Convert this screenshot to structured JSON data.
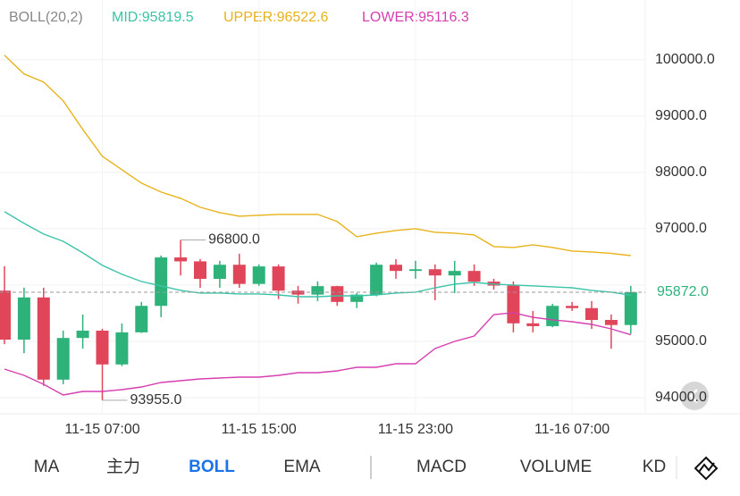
{
  "chart_data": {
    "type": "candlestick",
    "indicator": "BOLL(20,2)",
    "categories": [
      null,
      null,
      null,
      null,
      null,
      "11-15 07:00",
      null,
      null,
      null,
      null,
      null,
      null,
      null,
      "11-15 15:00",
      null,
      null,
      null,
      null,
      null,
      null,
      null,
      "11-15 23:00",
      null,
      null,
      null,
      null,
      null,
      null,
      null,
      "11-16 07:00",
      null,
      null,
      null
    ],
    "open": [
      95900,
      95030,
      95780,
      94320,
      95060,
      95190,
      94590,
      95160,
      95630,
      96490,
      96420,
      96110,
      96360,
      96020,
      96330,
      95900,
      95830,
      95980,
      95700,
      95830,
      96360,
      96250,
      96280,
      96170,
      96250,
      96060,
      95990,
      95320,
      95270,
      95630,
      95590,
      95380,
      95290
    ],
    "high": [
      96334,
      95953,
      95953,
      95190,
      95477,
      95223,
      95318,
      95700,
      96524,
      96800,
      96460,
      96430,
      96556,
      96366,
      96366,
      95985,
      96064,
      95985,
      95858,
      96398,
      96460,
      96430,
      96366,
      96430,
      96366,
      96112,
      96064,
      95540,
      95667,
      95700,
      95715,
      95477,
      95985
    ],
    "low": [
      94950,
      94790,
      94210,
      94240,
      94870,
      93955,
      94560,
      95150,
      95430,
      96170,
      95950,
      95950,
      95950,
      95985,
      95750,
      95670,
      95715,
      95630,
      95590,
      95800,
      96112,
      96112,
      95730,
      95858,
      95985,
      95920,
      95160,
      95160,
      95250,
      95540,
      95220,
      94870,
      95130
    ],
    "close": [
      95030,
      95780,
      94320,
      95060,
      95190,
      94590,
      95160,
      95630,
      96490,
      96420,
      96110,
      96360,
      96020,
      96330,
      95900,
      95830,
      95980,
      95700,
      95830,
      96360,
      96250,
      96280,
      96170,
      96250,
      96060,
      95990,
      95320,
      95270,
      95630,
      95590,
      95380,
      95290,
      95872
    ],
    "up_color": "#2db37a",
    "down_color": "#e0455a",
    "lines": [
      {
        "name": "MID:",
        "color": "#3cc4a8",
        "last_value": 95819.5,
        "values": [
          97301,
          97095,
          96904,
          96777,
          96571,
          96349,
          96190,
          96063,
          95984,
          95905,
          95857,
          95857,
          95841,
          95841,
          95825,
          95793,
          95793,
          95809,
          95809,
          95825,
          95857,
          95873,
          95952,
          96016,
          96047,
          96016,
          96000,
          95984,
          95968,
          95952,
          95905,
          95873,
          95820
        ]
      },
      {
        "name": "UPPER:",
        "color": "#e8b21a",
        "last_value": 96522.6,
        "values": [
          100079,
          99746,
          99603,
          99270,
          98762,
          98285,
          98047,
          97809,
          97650,
          97539,
          97381,
          97285,
          97222,
          97238,
          97254,
          97254,
          97254,
          97127,
          96857,
          96920,
          96968,
          97000,
          96936,
          96920,
          96889,
          96682,
          96666,
          96714,
          96666,
          96603,
          96587,
          96560,
          96523
        ]
      },
      {
        "name": "LOWER:",
        "color": "#d63fb0",
        "last_value": 95116.3,
        "values": [
          94507,
          94396,
          94237,
          94047,
          94110,
          94110,
          94142,
          94190,
          94269,
          94301,
          94333,
          94349,
          94365,
          94365,
          94396,
          94444,
          94444,
          94476,
          94539,
          94539,
          94603,
          94603,
          94873,
          95000,
          95095,
          95476,
          95508,
          95428,
          95381,
          95349,
          95301,
          95222,
          95116
        ]
      }
    ],
    "ylim": [
      93730,
      101060
    ],
    "yticks": [
      {
        "value": 94000,
        "label": "94000.0"
      },
      {
        "value": 95000,
        "label": "95000.0"
      },
      {
        "value": 96000,
        "label": ""
      },
      {
        "value": 97000,
        "label": "97000.0"
      },
      {
        "value": 98000,
        "label": "98000.0"
      },
      {
        "value": 99000,
        "label": "99000.0"
      },
      {
        "value": 100000,
        "label": "100000.0"
      }
    ],
    "grid": true,
    "high_marker": {
      "value": 96800,
      "label": "96800.0"
    },
    "low_marker": {
      "value": 93955,
      "label": "93955.0"
    },
    "current_price": {
      "value": 95872,
      "label": "95872.0"
    }
  },
  "tabs": [
    "MA",
    "主力",
    "BOLL",
    "EMA",
    "MACD",
    "VOLUME",
    "KD"
  ],
  "active_tab": "BOLL"
}
